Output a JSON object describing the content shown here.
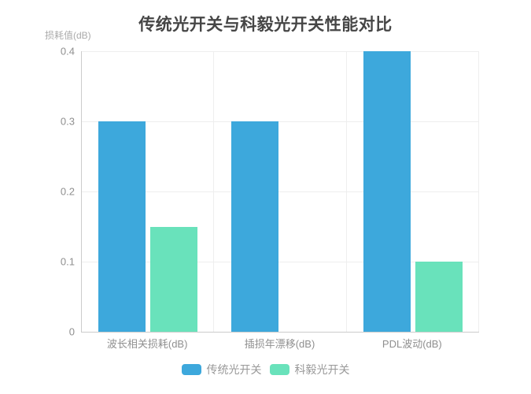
{
  "chart_data": {
    "type": "bar",
    "title": "传统光开关与科毅光开关性能对比",
    "ylabel": "损耗值(dB)",
    "xlabel": "",
    "categories": [
      "波长相关损耗(dB)",
      "插损年漂移(dB)",
      "PDL波动(dB)"
    ],
    "series": [
      {
        "name": "传统光开关",
        "color": "#3da8dc",
        "values": [
          0.3,
          0.3,
          0.4
        ]
      },
      {
        "name": "科毅光开关",
        "color": "#69e2bb",
        "values": [
          0.15,
          0,
          0.1
        ]
      }
    ],
    "ylim": [
      0,
      0.4
    ],
    "ytick_step": 0.1,
    "ytick_labels": [
      "0",
      "0.1",
      "0.2",
      "0.3",
      "0.4"
    ],
    "grid": true,
    "legend_position": "bottom",
    "colors": {
      "title": "#464646",
      "axis_line": "#cccccc",
      "grid_line": "#eeeeee",
      "axis_label": "#8f8f8f",
      "axis_name": "#aaaaaa",
      "legend_text": "#999999",
      "background": "#ffffff"
    }
  }
}
